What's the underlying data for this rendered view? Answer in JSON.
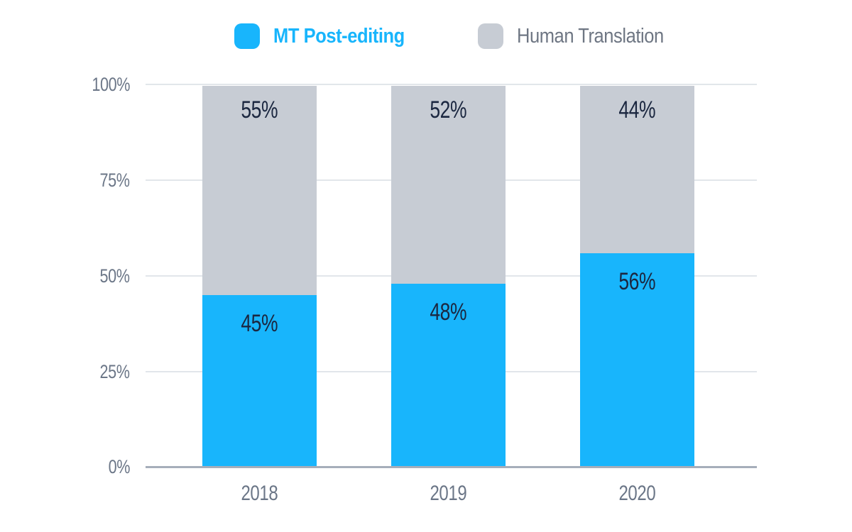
{
  "chart_data": {
    "type": "bar",
    "variant": "stacked-percentage",
    "title": "",
    "categories": [
      "2018",
      "2019",
      "2020"
    ],
    "series": [
      {
        "name": "MT Post-editing",
        "color": "#18b5fc",
        "values": [
          45,
          48,
          56
        ],
        "labels": [
          "45%",
          "48%",
          "56%"
        ]
      },
      {
        "name": "Human Translation",
        "color": "#c7ccd4",
        "values": [
          55,
          52,
          44
        ],
        "labels": [
          "55%",
          "52%",
          "44%"
        ]
      }
    ],
    "y_axis": {
      "ticks": [
        "0%",
        "25%",
        "50%",
        "75%",
        "100%"
      ],
      "range": [
        0,
        100
      ],
      "grid": "horizontal"
    },
    "legend_position": "top"
  },
  "legend": {
    "items": [
      {
        "label": "MT Post-editing",
        "swatch_color": "#18b5fc",
        "text_color": "#18b5fc"
      },
      {
        "label": "Human Translation",
        "swatch_color": "#c7ccd4",
        "text_color": "#6e7683"
      }
    ]
  },
  "colors": {
    "mt_blue": "#18b5fc",
    "human_gray": "#c7ccd4",
    "value_label": "#1b2740",
    "axis_text": "#6b7687",
    "gridline": "#e2e6ea",
    "axis_line": "#a6aeba",
    "background": "#ffffff"
  }
}
